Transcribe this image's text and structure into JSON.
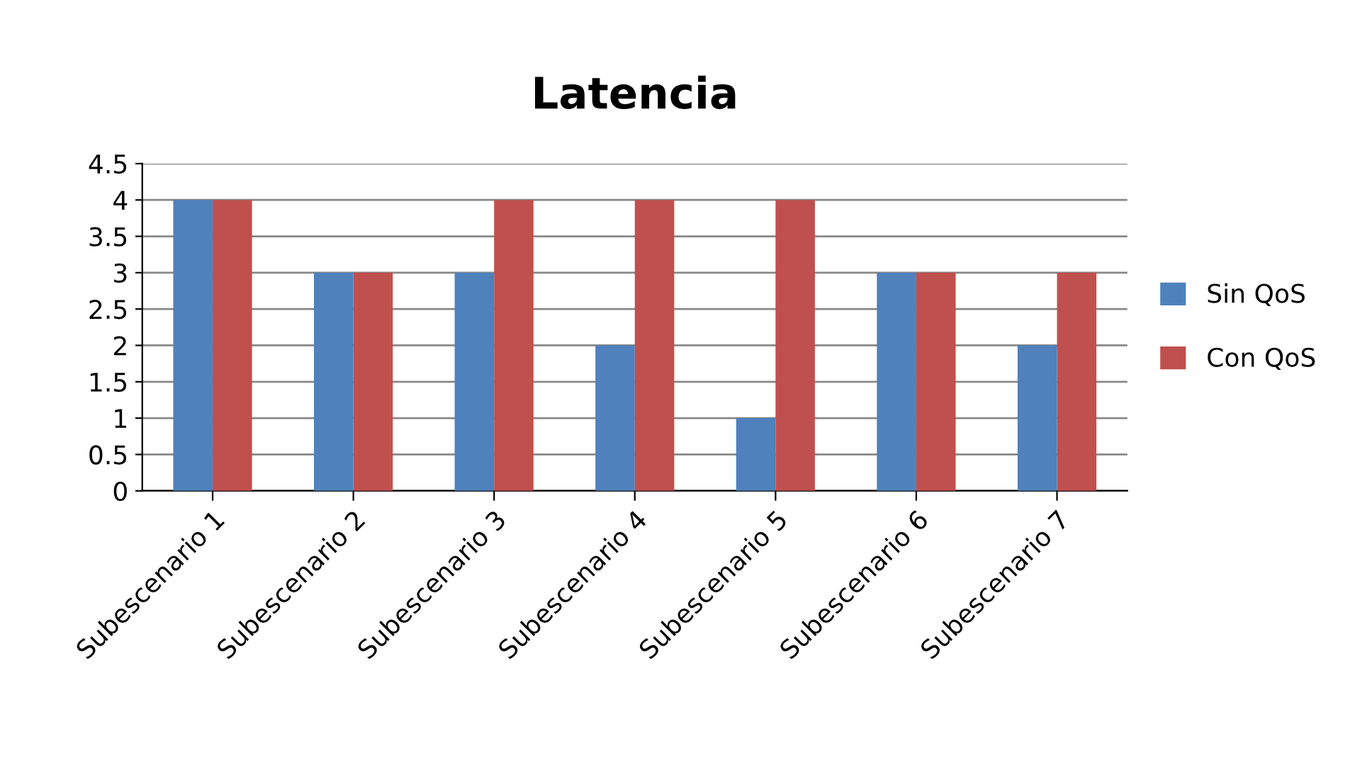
{
  "chart_data": {
    "type": "bar",
    "title": "Latencia",
    "categories": [
      "Subescenario 1",
      "Subescenario 2",
      "Subescenario 3",
      "Subescenario 4",
      "Subescenario 5",
      "Subescenario 6",
      "Subescenario 7"
    ],
    "series": [
      {
        "name": "Sin QoS",
        "color": "#4f81bd",
        "values": [
          4,
          3,
          3,
          2,
          1,
          3,
          2
        ]
      },
      {
        "name": "Con QoS",
        "color": "#c0504d",
        "values": [
          4,
          3,
          4,
          4,
          4,
          3,
          3
        ]
      }
    ],
    "ylim": [
      0,
      4.5
    ],
    "yticks": [
      0,
      0.5,
      1,
      1.5,
      2,
      2.5,
      3,
      3.5,
      4,
      4.5
    ],
    "grid": "y",
    "legend": "right"
  }
}
